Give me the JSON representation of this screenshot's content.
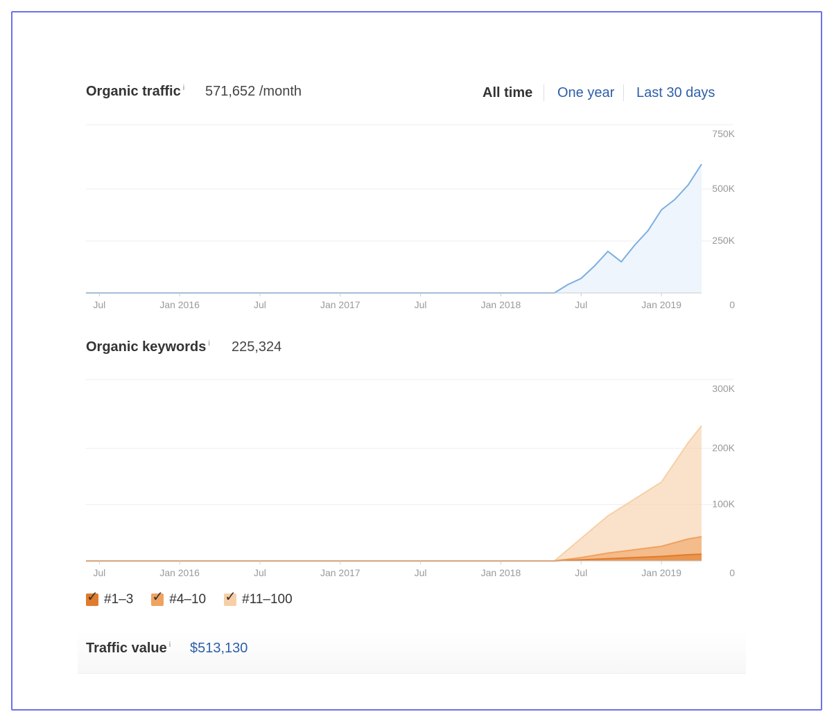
{
  "traffic": {
    "title": "Organic traffic",
    "info_icon": "info-icon",
    "value": "571,652 /month"
  },
  "range": {
    "all_time": "All time",
    "one_year": "One year",
    "last_30_days": "Last 30 days",
    "active": "All time"
  },
  "keywords": {
    "title": "Organic keywords",
    "info_icon": "info-icon",
    "value": "225,324"
  },
  "traffic_value": {
    "title": "Traffic value",
    "info_icon": "info-icon",
    "value": "$513,130"
  },
  "legend": [
    {
      "label": "#1–3",
      "color": "#e07b2c",
      "checked": true
    },
    {
      "label": "#4–10",
      "color": "#f0a260",
      "checked": true
    },
    {
      "label": "#11–100",
      "color": "#f7cfa6",
      "checked": true
    }
  ],
  "chart_data": [
    {
      "type": "area",
      "title": "Organic traffic",
      "x_tick_labels": [
        "Jul",
        "Jan 2016",
        "Jul",
        "Jan 2017",
        "Jul",
        "Jan 2018",
        "Jul",
        "Jan 2019"
      ],
      "x_ticks": [
        "2015-07",
        "2016-01",
        "2016-07",
        "2017-01",
        "2017-07",
        "2018-01",
        "2018-07",
        "2019-01"
      ],
      "x_range": [
        "2015-06",
        "2019-04"
      ],
      "y_tick_labels": [
        "750K",
        "500K",
        "250K",
        "0"
      ],
      "ylim": [
        0,
        750000
      ],
      "y_axis_side": "right",
      "grid": true,
      "line_color": "#7aaee0",
      "fill_color": "#eef5fc",
      "series": [
        {
          "x": [
            "2015-06",
            "2018-05",
            "2018-06",
            "2018-07",
            "2018-08",
            "2018-09",
            "2018-10",
            "2018-11",
            "2018-12",
            "2019-01",
            "2019-02",
            "2019-03",
            "2019-04"
          ],
          "values": [
            0,
            0,
            40000,
            70000,
            130000,
            200000,
            150000,
            230000,
            300000,
            400000,
            450000,
            520000,
            620000
          ]
        }
      ]
    },
    {
      "type": "area",
      "title": "Organic keywords",
      "x_tick_labels": [
        "Jul",
        "Jan 2016",
        "Jul",
        "Jan 2017",
        "Jul",
        "Jan 2018",
        "Jul",
        "Jan 2019"
      ],
      "x_ticks": [
        "2015-07",
        "2016-01",
        "2016-07",
        "2017-01",
        "2017-07",
        "2018-01",
        "2018-07",
        "2019-01"
      ],
      "x_range": [
        "2015-06",
        "2019-04"
      ],
      "y_tick_labels": [
        "300K",
        "200K",
        "100K",
        "0"
      ],
      "ylim": [
        0,
        300000
      ],
      "y_axis_side": "right",
      "grid": true,
      "stacked": true,
      "series": [
        {
          "name": "#1–3",
          "color": "#e07b2c",
          "x": [
            "2015-06",
            "2018-05",
            "2018-07",
            "2018-09",
            "2018-11",
            "2019-01",
            "2019-03",
            "2019-04"
          ],
          "values": [
            0,
            0,
            2000,
            4000,
            6000,
            8000,
            11000,
            12000
          ]
        },
        {
          "name": "#4–10",
          "color": "#f0a260",
          "x": [
            "2015-06",
            "2018-05",
            "2018-07",
            "2018-09",
            "2018-11",
            "2019-01",
            "2019-03",
            "2019-04"
          ],
          "values": [
            0,
            0,
            4000,
            10000,
            14000,
            18000,
            28000,
            31000
          ]
        },
        {
          "name": "#11–100",
          "color": "#f7cfa6",
          "x": [
            "2015-06",
            "2018-05",
            "2018-07",
            "2018-09",
            "2018-11",
            "2019-01",
            "2019-03",
            "2019-04"
          ],
          "values": [
            0,
            0,
            34000,
            66000,
            90000,
            114000,
            171000,
            197000
          ]
        }
      ]
    }
  ]
}
